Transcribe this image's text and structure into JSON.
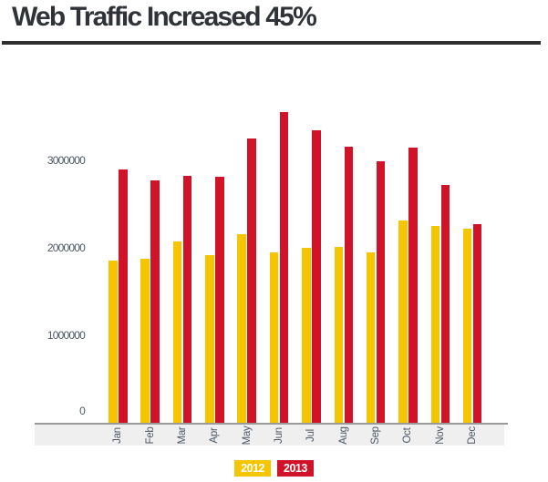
{
  "title": "Web Traffic Increased 45%",
  "chart_data": {
    "type": "bar",
    "title": "Web Traffic Increased 45%",
    "categories": [
      "Jan",
      "Feb",
      "Mar",
      "Apr",
      "May",
      "Jun",
      "Jul",
      "Aug",
      "Sep",
      "Oct",
      "Nov",
      "Dec"
    ],
    "series": [
      {
        "name": "2012",
        "color": "#F5C500",
        "values": [
          1850000,
          1880000,
          2070000,
          1920000,
          2160000,
          1950000,
          2000000,
          2010000,
          1950000,
          2310000,
          2250000,
          2220000
        ]
      },
      {
        "name": "2013",
        "color": "#D11329",
        "values": [
          2900000,
          2770000,
          2820000,
          2810000,
          3250000,
          3550000,
          3340000,
          3160000,
          2990000,
          3150000,
          2720000,
          2270000
        ]
      }
    ],
    "xlabel": "",
    "ylabel": "",
    "ylim": [
      0,
      3700000
    ],
    "yticks": [
      {
        "value": 0,
        "label": "0"
      },
      {
        "value": 1000000,
        "label": "1000000"
      },
      {
        "value": 2000000,
        "label": "2000000"
      },
      {
        "value": 3000000,
        "label": "3000000"
      }
    ],
    "grid": false,
    "legend": {
      "position": "bottom",
      "items": [
        "2012",
        "2013"
      ]
    }
  },
  "colors": {
    "series_2012": "#F5C500",
    "series_2013": "#D11329",
    "x_band_background": "#EFEFEF",
    "axis_line": "#9A9A9A",
    "tick_text": "#4D5966",
    "title_text": "#2F3237",
    "title_rule": "#2E2E2E",
    "legend_text": "#FFFFFF"
  }
}
